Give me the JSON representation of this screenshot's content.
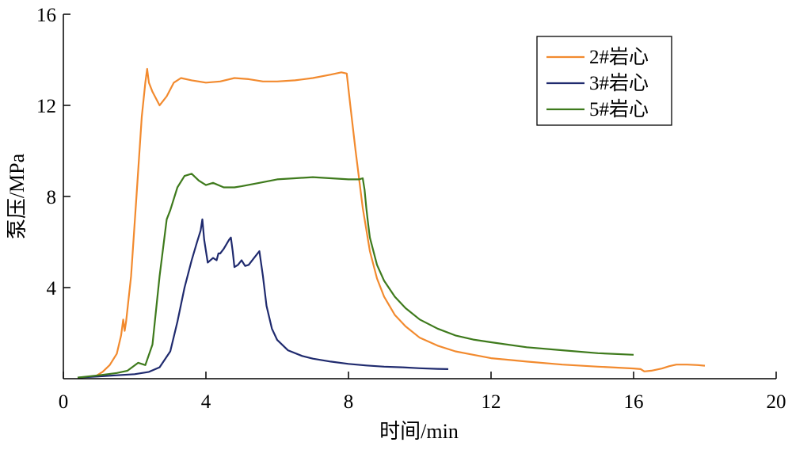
{
  "chart_data": {
    "type": "line",
    "title": "",
    "xlabel": "时间/min",
    "ylabel": "泵压/MPa",
    "xlim": [
      0,
      20
    ],
    "ylim": [
      0,
      16
    ],
    "xticks": [
      0,
      4,
      8,
      12,
      16,
      20
    ],
    "yticks": [
      4,
      8,
      12,
      16
    ],
    "x_tick_labels": [
      "0",
      "4",
      "8",
      "12",
      "16",
      "20"
    ],
    "y_tick_labels": [
      "4",
      "8",
      "12",
      "16"
    ],
    "grid": false,
    "legend_position": "top-right",
    "series": [
      {
        "name": "2#岩心",
        "color": "#f28a2e",
        "x": [
          0.9,
          1.1,
          1.3,
          1.5,
          1.62,
          1.68,
          1.72,
          1.76,
          1.9,
          2.05,
          2.2,
          2.3,
          2.35,
          2.4,
          2.5,
          2.6,
          2.7,
          2.9,
          3.1,
          3.3,
          3.6,
          4.0,
          4.4,
          4.8,
          5.2,
          5.6,
          6.0,
          6.5,
          7.0,
          7.5,
          7.8,
          7.95,
          8.05,
          8.2,
          8.4,
          8.6,
          8.8,
          9.0,
          9.3,
          9.6,
          10.0,
          10.5,
          11.0,
          11.5,
          12.0,
          13.0,
          14.0,
          15.0,
          16.0,
          16.2,
          16.3,
          16.5,
          16.8,
          17.0,
          17.2,
          17.5,
          17.8,
          18.0
        ],
        "y": [
          0.1,
          0.3,
          0.6,
          1.1,
          1.9,
          2.6,
          2.1,
          2.5,
          4.5,
          8.0,
          11.5,
          13.0,
          13.6,
          13.0,
          12.6,
          12.3,
          12.0,
          12.4,
          13.0,
          13.2,
          13.1,
          13.0,
          13.05,
          13.2,
          13.15,
          13.05,
          13.05,
          13.1,
          13.2,
          13.35,
          13.45,
          13.4,
          12.0,
          10.0,
          7.5,
          5.6,
          4.4,
          3.6,
          2.8,
          2.3,
          1.8,
          1.45,
          1.2,
          1.05,
          0.9,
          0.75,
          0.62,
          0.53,
          0.45,
          0.42,
          0.32,
          0.35,
          0.45,
          0.55,
          0.62,
          0.62,
          0.6,
          0.57
        ]
      },
      {
        "name": "3#岩心",
        "color": "#1f2a6e",
        "x": [
          0.4,
          1.0,
          1.5,
          2.0,
          2.4,
          2.7,
          3.0,
          3.2,
          3.4,
          3.6,
          3.75,
          3.85,
          3.9,
          3.95,
          4.05,
          4.2,
          4.3,
          4.35,
          4.4,
          4.5,
          4.65,
          4.7,
          4.75,
          4.8,
          4.9,
          5.0,
          5.1,
          5.2,
          5.35,
          5.5,
          5.6,
          5.7,
          5.85,
          6.0,
          6.3,
          6.7,
          7.0,
          7.5,
          8.0,
          8.5,
          9.0,
          9.5,
          10.0,
          10.5,
          10.8
        ],
        "y": [
          0.05,
          0.1,
          0.15,
          0.2,
          0.3,
          0.5,
          1.2,
          2.5,
          4.0,
          5.2,
          6.0,
          6.5,
          7.0,
          6.1,
          5.1,
          5.3,
          5.2,
          5.5,
          5.5,
          5.7,
          6.1,
          6.2,
          5.6,
          4.9,
          5.0,
          5.2,
          4.95,
          5.0,
          5.3,
          5.6,
          4.5,
          3.2,
          2.2,
          1.7,
          1.25,
          1.0,
          0.88,
          0.75,
          0.65,
          0.58,
          0.53,
          0.5,
          0.46,
          0.43,
          0.42
        ]
      },
      {
        "name": "5#岩心",
        "color": "#3e7a1c",
        "x": [
          0.4,
          1.0,
          1.5,
          1.8,
          2.1,
          2.3,
          2.5,
          2.7,
          2.9,
          3.0,
          3.2,
          3.4,
          3.6,
          3.8,
          4.0,
          4.2,
          4.5,
          4.8,
          5.0,
          5.5,
          6.0,
          6.5,
          7.0,
          7.5,
          8.0,
          8.3,
          8.4,
          8.45,
          8.5,
          8.55,
          8.6,
          8.8,
          9.0,
          9.3,
          9.6,
          10.0,
          10.5,
          11.0,
          11.5,
          12.0,
          13.0,
          14.0,
          15.0,
          16.0
        ],
        "y": [
          0.05,
          0.15,
          0.25,
          0.35,
          0.7,
          0.6,
          1.5,
          4.5,
          7.0,
          7.4,
          8.4,
          8.9,
          9.0,
          8.7,
          8.5,
          8.6,
          8.4,
          8.4,
          8.45,
          8.6,
          8.75,
          8.8,
          8.85,
          8.8,
          8.75,
          8.75,
          8.8,
          8.3,
          7.5,
          6.8,
          6.2,
          5.0,
          4.3,
          3.6,
          3.1,
          2.6,
          2.2,
          1.9,
          1.72,
          1.6,
          1.38,
          1.25,
          1.12,
          1.05
        ]
      }
    ]
  }
}
